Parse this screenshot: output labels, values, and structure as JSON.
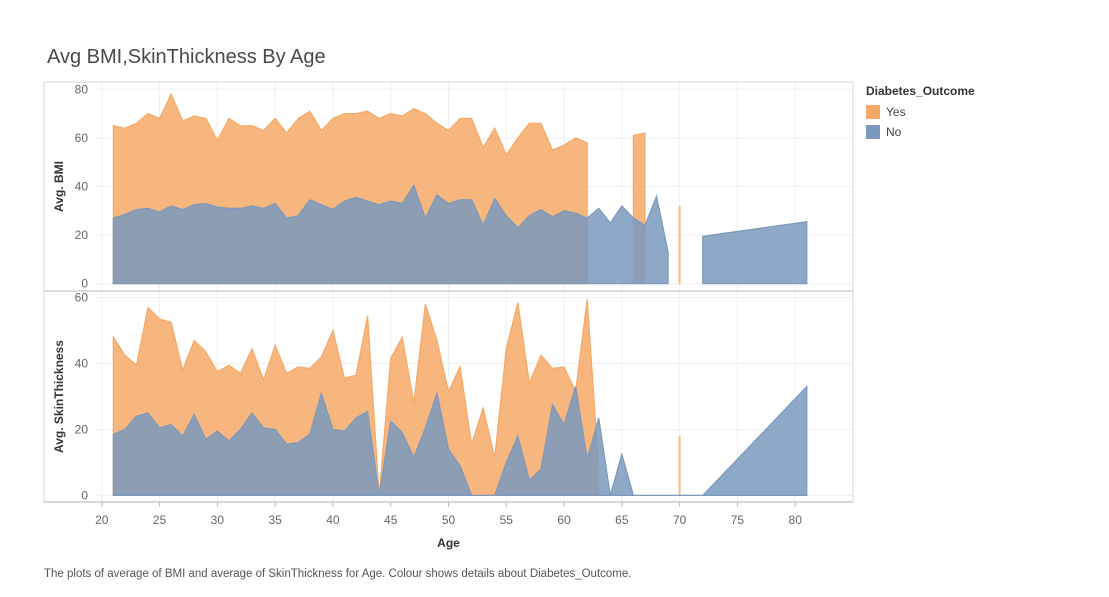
{
  "title": "Avg BMI,SkinThickness By Age",
  "caption": "The plots of average of BMI and average of SkinThickness for Age.  Colour shows details about Diabetes_Outcome.",
  "legend": {
    "title": "Diabetes_Outcome",
    "items": [
      {
        "label": "Yes",
        "color": "#f5a966"
      },
      {
        "label": "No",
        "color": "#7a99bd"
      }
    ]
  },
  "chart_data": {
    "type": "area",
    "xlabel": "Age",
    "xlim": [
      15,
      85
    ],
    "xticks": [
      20,
      25,
      30,
      35,
      40,
      45,
      50,
      55,
      60,
      65,
      70,
      75,
      80
    ],
    "panels": [
      {
        "ylabel": "Avg. BMI",
        "ylim": [
          -3,
          83
        ],
        "yticks": [
          0,
          20,
          40,
          60,
          80
        ],
        "series": [
          {
            "name": "Yes",
            "color": "#f5a966",
            "segments": [
              {
                "x": [
                  21,
                  22,
                  23,
                  24,
                  25,
                  26,
                  27,
                  28,
                  29,
                  30,
                  31,
                  32,
                  33,
                  34,
                  35,
                  36,
                  37,
                  38,
                  39,
                  40,
                  41,
                  42,
                  43,
                  44,
                  45,
                  46,
                  47,
                  48,
                  49,
                  50,
                  51,
                  52,
                  53,
                  54,
                  55,
                  56,
                  57,
                  58,
                  59,
                  60,
                  61,
                  62
                ],
                "y": [
                  65,
                  64,
                  66,
                  70,
                  68,
                  78,
                  67,
                  69,
                  68,
                  59,
                  68,
                  65,
                  65,
                  63,
                  68,
                  62,
                  68,
                  71,
                  63,
                  68,
                  70,
                  70,
                  71,
                  68,
                  70,
                  69,
                  72,
                  70,
                  66,
                  63,
                  68,
                  68,
                  56,
                  64,
                  53,
                  60,
                  66,
                  66,
                  55,
                  57,
                  60,
                  58
                ]
              },
              {
                "x": [
                  66,
                  67
                ],
                "y": [
                  61,
                  62
                ]
              },
              {
                "x": [
                  70
                ],
                "y": [
                  32
                ]
              }
            ]
          },
          {
            "name": "No",
            "color": "#7a99bd",
            "segments": [
              {
                "x": [
                  21,
                  22,
                  23,
                  24,
                  25,
                  26,
                  27,
                  28,
                  29,
                  30,
                  31,
                  32,
                  33,
                  34,
                  35,
                  36,
                  37,
                  38,
                  39,
                  40,
                  41,
                  42,
                  43,
                  44,
                  45,
                  46,
                  47,
                  48,
                  49,
                  50,
                  51,
                  52,
                  53,
                  54,
                  55,
                  56,
                  57,
                  58,
                  59,
                  60,
                  61,
                  62,
                  63,
                  64,
                  65,
                  66,
                  67,
                  68,
                  69
                ],
                "y": [
                  27,
                  28.5,
                  30.5,
                  31,
                  29.5,
                  32,
                  30.5,
                  32.5,
                  33,
                  31.5,
                  31,
                  31,
                  32,
                  31,
                  33,
                  27,
                  28,
                  34.5,
                  32.5,
                  30.5,
                  34,
                  35.5,
                  34,
                  32.5,
                  34,
                  33,
                  40.5,
                  27,
                  36.5,
                  33,
                  34.5,
                  34.5,
                  24,
                  35,
                  28,
                  23,
                  28,
                  30.5,
                  27.5,
                  30,
                  29,
                  27,
                  31,
                  25,
                  32,
                  27,
                  24,
                  36,
                  13
                ]
              },
              {
                "x": [
                  72,
                  81
                ],
                "y": [
                  19.5,
                  25.5
                ]
              }
            ]
          }
        ]
      },
      {
        "ylabel": "Avg. SkinThickness",
        "ylim": [
          -2,
          62
        ],
        "yticks": [
          0,
          20,
          40,
          60
        ],
        "series": [
          {
            "name": "Yes",
            "color": "#f5a966",
            "segments": [
              {
                "x": [
                  21,
                  22,
                  23,
                  24,
                  25,
                  26,
                  27,
                  28,
                  29,
                  30,
                  31,
                  32,
                  33,
                  34,
                  35,
                  36,
                  37,
                  38,
                  39,
                  40,
                  41,
                  42,
                  43,
                  44,
                  45,
                  46,
                  47,
                  48,
                  49,
                  50,
                  51,
                  52,
                  53,
                  54,
                  55,
                  56,
                  57,
                  58,
                  59,
                  60,
                  61,
                  62,
                  63
                ],
                "y": [
                  48,
                  42.5,
                  39.5,
                  57,
                  53.5,
                  52.5,
                  38,
                  47,
                  43.5,
                  37.5,
                  39.5,
                  37,
                  44.5,
                  35,
                  45.5,
                  37,
                  39,
                  38.5,
                  42,
                  50,
                  35.5,
                  36.5,
                  54.5,
                  0,
                  41.5,
                  48,
                  28,
                  58,
                  47,
                  31.5,
                  39,
                  15.5,
                  26.5,
                  11.5,
                  44.5,
                  58.5,
                  34,
                  42.5,
                  38.5,
                  39,
                  31.5,
                  59.5,
                  8
                ]
              },
              {
                "x": [
                  70
                ],
                "y": [
                  18
                ]
              }
            ]
          },
          {
            "name": "No",
            "color": "#7a99bd",
            "segments": [
              {
                "x": [
                  21,
                  22,
                  23,
                  24,
                  25,
                  26,
                  27,
                  28,
                  29,
                  30,
                  31,
                  32,
                  33,
                  34,
                  35,
                  36,
                  37,
                  38,
                  39,
                  40,
                  41,
                  42,
                  43,
                  44,
                  45,
                  46,
                  47,
                  48,
                  49,
                  50,
                  51,
                  52,
                  53,
                  54,
                  55,
                  56,
                  57,
                  58,
                  59,
                  60,
                  61,
                  62,
                  63,
                  64,
                  65,
                  66,
                  67,
                  68,
                  69,
                  70,
                  71,
                  72,
                  73,
                  74,
                  75,
                  76,
                  77,
                  78,
                  79,
                  80,
                  81
                ],
                "y": [
                  18.5,
                  20,
                  24,
                  25,
                  20.5,
                  21.5,
                  18,
                  24.5,
                  17,
                  19.5,
                  16.5,
                  20,
                  25,
                  20.5,
                  20,
                  15.5,
                  16,
                  18.5,
                  31,
                  20,
                  19.5,
                  23.5,
                  25.5,
                  0,
                  22.5,
                  19,
                  11.5,
                  20.5,
                  31,
                  14,
                  9,
                  0,
                  0,
                  0,
                  10,
                  18,
                  4.5,
                  8,
                  27.5,
                  21.5,
                  33,
                  11,
                  23.5,
                  0,
                  12.5,
                  0,
                  0,
                  0,
                  0,
                  0,
                  0,
                  0,
                  3.67,
                  7.33,
                  11,
                  14.67,
                  18.33,
                  22,
                  25.67,
                  29.33,
                  33
                ]
              }
            ]
          }
        ]
      }
    ]
  }
}
